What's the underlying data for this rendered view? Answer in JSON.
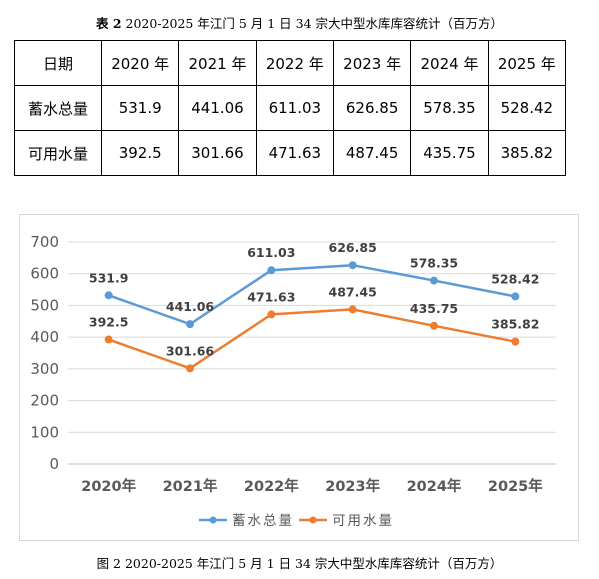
{
  "table_caption": {
    "label": "表 2",
    "text": "2020-2025 年江门 5 月 1 日 34 宗大中型水库库容统计（百万方）"
  },
  "table": {
    "header": [
      "日期",
      "2020 年",
      "2021 年",
      "2022 年",
      "2023 年",
      "2024 年",
      "2025 年"
    ],
    "rows": [
      [
        "蓄水总量",
        "531.9",
        "441.06",
        "611.03",
        "626.85",
        "578.35",
        "528.42"
      ],
      [
        "可用水量",
        "392.5",
        "301.66",
        "471.63",
        "487.45",
        "435.75",
        "385.82"
      ]
    ]
  },
  "chart_data": {
    "type": "line",
    "categories": [
      "2020年",
      "2021年",
      "2022年",
      "2023年",
      "2024年",
      "2025年"
    ],
    "ylim": [
      0,
      700
    ],
    "yticks": [
      "0",
      "100",
      "200",
      "300",
      "400",
      "500",
      "600",
      "700"
    ],
    "grid": true,
    "legend_position": "bottom",
    "series": [
      {
        "name": "蓄水总量",
        "values": [
          531.9,
          441.06,
          611.03,
          626.85,
          578.35,
          528.42
        ],
        "labels": [
          "531.9",
          "441.06",
          "611.03",
          "626.85",
          "578.35",
          "528.42"
        ],
        "color": "#5b9bd5"
      },
      {
        "name": "可用水量",
        "values": [
          392.5,
          301.66,
          471.63,
          487.45,
          435.75,
          385.82
        ],
        "labels": [
          "392.5",
          "301.66",
          "471.63",
          "487.45",
          "435.75",
          "385.82"
        ],
        "color": "#ed7d31"
      }
    ]
  },
  "figure_caption": "图 2 2020-2025 年江门 5 月 1 日 34 宗大中型水库库容统计（百万方）"
}
